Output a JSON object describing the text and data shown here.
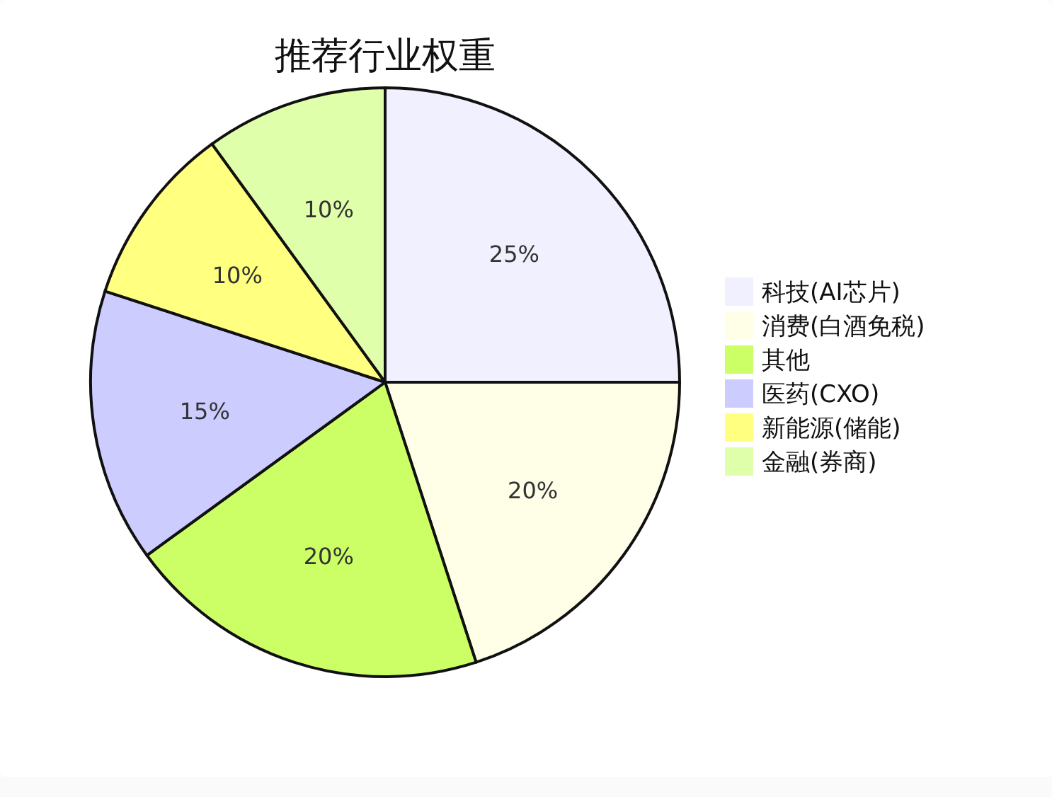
{
  "chart_data": {
    "type": "pie",
    "title": "推荐行业权重",
    "categories": [
      "科技(AI芯片)",
      "消费(白酒免税)",
      "其他",
      "医药(CXO)",
      "新能源(储能)",
      "金融(券商)"
    ],
    "values": [
      25,
      20,
      20,
      15,
      10,
      10
    ],
    "colors": [
      "#f0f0ff",
      "#ffffe8",
      "#ccff66",
      "#ccccff",
      "#ffff80",
      "#e0ffaa"
    ],
    "value_labels": [
      "25%",
      "20%",
      "20%",
      "15%",
      "10%",
      "10%"
    ],
    "legend": "right"
  }
}
